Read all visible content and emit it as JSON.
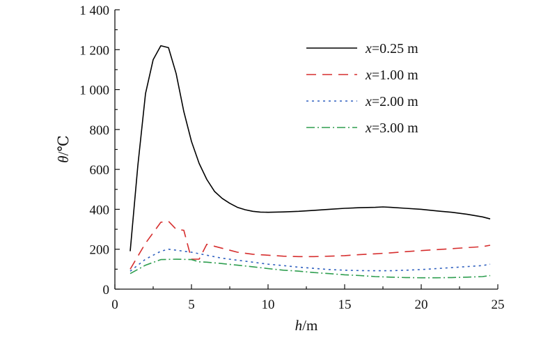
{
  "chart_data": {
    "type": "line",
    "xlabel": {
      "var": "h",
      "unit": "/m"
    },
    "ylabel": {
      "var": "θ",
      "unit": "/℃"
    },
    "xlim": [
      0,
      25
    ],
    "ylim": [
      0,
      1400
    ],
    "xticks": [
      0,
      5,
      10,
      15,
      20,
      25
    ],
    "xtick_labels": [
      "0",
      "5",
      "10",
      "15",
      "20",
      "25"
    ],
    "yticks": [
      0,
      200,
      400,
      600,
      800,
      1000,
      1200,
      1400
    ],
    "ytick_labels": [
      "0",
      "200",
      "400",
      "600",
      "800",
      "1 000",
      "1 200",
      "1 400"
    ],
    "grid": false,
    "legend_position": "top-right",
    "series": [
      {
        "legend_var": "x",
        "legend_value": "=0.25 m",
        "color": "#000000",
        "dash": "solid",
        "x": [
          1,
          1.5,
          2,
          2.5,
          3,
          3.5,
          4,
          4.5,
          5,
          5.5,
          6,
          6.5,
          7,
          7.5,
          8,
          8.5,
          9,
          9.5,
          10,
          11,
          12,
          13,
          14,
          15,
          16,
          17,
          17.5,
          18,
          19,
          20,
          21,
          22,
          23,
          24,
          24.5
        ],
        "y": [
          190,
          620,
          980,
          1150,
          1220,
          1210,
          1080,
          890,
          740,
          630,
          550,
          490,
          455,
          430,
          410,
          398,
          390,
          386,
          385,
          387,
          390,
          395,
          400,
          405,
          408,
          410,
          412,
          410,
          405,
          400,
          392,
          385,
          375,
          362,
          352
        ]
      },
      {
        "legend_var": "x",
        "legend_value": "=1.00 m",
        "color": "#d62e2e",
        "dash": "long-dash",
        "x": [
          1,
          2,
          3,
          3.5,
          4,
          4.5,
          5,
          5.5,
          6,
          7,
          8,
          9,
          10,
          11,
          12,
          13,
          14,
          15,
          16,
          17,
          18,
          19,
          20,
          21,
          22,
          23,
          24,
          24.5
        ],
        "y": [
          100,
          230,
          335,
          340,
          300,
          295,
          150,
          150,
          225,
          205,
          185,
          175,
          170,
          165,
          163,
          163,
          165,
          168,
          173,
          177,
          182,
          188,
          193,
          198,
          203,
          208,
          213,
          220
        ]
      },
      {
        "legend_var": "x",
        "legend_value": "=2.00 m",
        "color": "#2e5fbf",
        "dash": "dot",
        "x": [
          1,
          2,
          3,
          3.5,
          4,
          5,
          6,
          7,
          8,
          9,
          10,
          11,
          12,
          13,
          14,
          15,
          16,
          17,
          18,
          19,
          20,
          21,
          22,
          23,
          24,
          24.5
        ],
        "y": [
          90,
          150,
          190,
          200,
          195,
          185,
          170,
          155,
          145,
          135,
          125,
          118,
          110,
          104,
          98,
          95,
          93,
          92,
          92,
          95,
          98,
          103,
          108,
          113,
          118,
          125
        ]
      },
      {
        "legend_var": "x",
        "legend_value": "=3.00 m",
        "color": "#2e9e4f",
        "dash": "dash-dot",
        "x": [
          1,
          2,
          3,
          4,
          5,
          5.5,
          6,
          7,
          8,
          9,
          10,
          11,
          12,
          13,
          14,
          15,
          16,
          17,
          18,
          19,
          20,
          21,
          22,
          23,
          24,
          24.5
        ],
        "y": [
          78,
          120,
          148,
          150,
          148,
          137,
          135,
          128,
          120,
          112,
          103,
          95,
          90,
          83,
          78,
          72,
          68,
          63,
          60,
          58,
          57,
          57,
          58,
          60,
          63,
          68
        ]
      }
    ]
  }
}
